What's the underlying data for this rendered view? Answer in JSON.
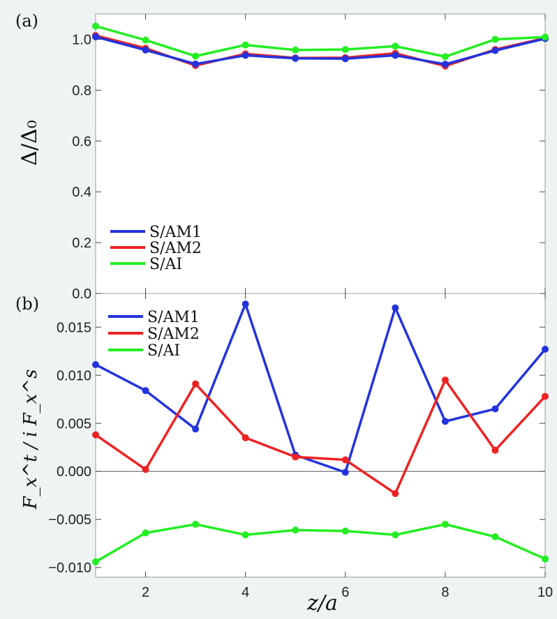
{
  "chart_data": [
    {
      "type": "line",
      "panel_label": "(a)",
      "ylabel": "Δ/Δ₀",
      "xlabel": "",
      "xlim": [
        1,
        10
      ],
      "ylim": [
        0.0,
        1.1
      ],
      "yticks": [
        0.0,
        0.2,
        0.4,
        0.6,
        0.8,
        1.0
      ],
      "ytick_labels": [
        "0.0",
        "0.2",
        "0.4",
        "0.6",
        "0.8",
        "1.0"
      ],
      "legend_position": "bottom-left",
      "x": [
        1,
        2,
        3,
        4,
        5,
        6,
        7,
        8,
        9,
        10
      ],
      "series": [
        {
          "name": "S/AM2",
          "color": "#ee2222",
          "values": [
            1.015,
            0.965,
            0.897,
            0.943,
            0.927,
            0.928,
            0.945,
            0.895,
            0.96,
            1.005
          ]
        },
        {
          "name": "S/AM1",
          "color": "#2233dd",
          "values": [
            1.01,
            0.958,
            0.903,
            0.937,
            0.925,
            0.924,
            0.937,
            0.902,
            0.956,
            1.003
          ]
        },
        {
          "name": "S/AI",
          "color": "#22ee22",
          "values": [
            1.052,
            0.997,
            0.934,
            0.978,
            0.958,
            0.96,
            0.973,
            0.932,
            1.0,
            1.009
          ]
        }
      ],
      "legend_order": [
        "S/AM1",
        "S/AM2",
        "S/AI"
      ]
    },
    {
      "type": "line",
      "panel_label": "(b)",
      "ylabel": "F_x^t / i F_x^s",
      "xlabel": "z/a",
      "xlim": [
        1,
        10
      ],
      "ylim": [
        -0.011,
        0.0185
      ],
      "yticks": [
        -0.01,
        -0.005,
        0.0,
        0.005,
        0.01,
        0.015
      ],
      "ytick_labels": [
        "−0.010",
        "−0.005",
        "0.000",
        "0.005",
        "0.010",
        "0.015"
      ],
      "xticks": [
        2,
        4,
        6,
        8,
        10
      ],
      "xtick_labels": [
        "2",
        "4",
        "6",
        "8",
        "10"
      ],
      "zero_line": true,
      "legend_position": "top-left",
      "x": [
        1,
        2,
        3,
        4,
        5,
        6,
        7,
        8,
        9,
        10
      ],
      "series": [
        {
          "name": "S/AM1",
          "color": "#2233dd",
          "values": [
            0.0111,
            0.0084,
            0.0044,
            0.0174,
            0.0017,
            -0.0001,
            0.017,
            0.0052,
            0.0065,
            0.0127
          ]
        },
        {
          "name": "S/AM2",
          "color": "#ee2222",
          "values": [
            0.0038,
            0.0002,
            0.0091,
            0.0035,
            0.0015,
            0.0012,
            -0.0023,
            0.0095,
            0.0022,
            0.0078
          ]
        },
        {
          "name": "S/AI",
          "color": "#22ee22",
          "values": [
            -0.0094,
            -0.0064,
            -0.0055,
            -0.0066,
            -0.0061,
            -0.0062,
            -0.0066,
            -0.0055,
            -0.0068,
            -0.0091
          ]
        }
      ],
      "legend_order": [
        "S/AM1",
        "S/AM2",
        "S/AI"
      ]
    }
  ]
}
